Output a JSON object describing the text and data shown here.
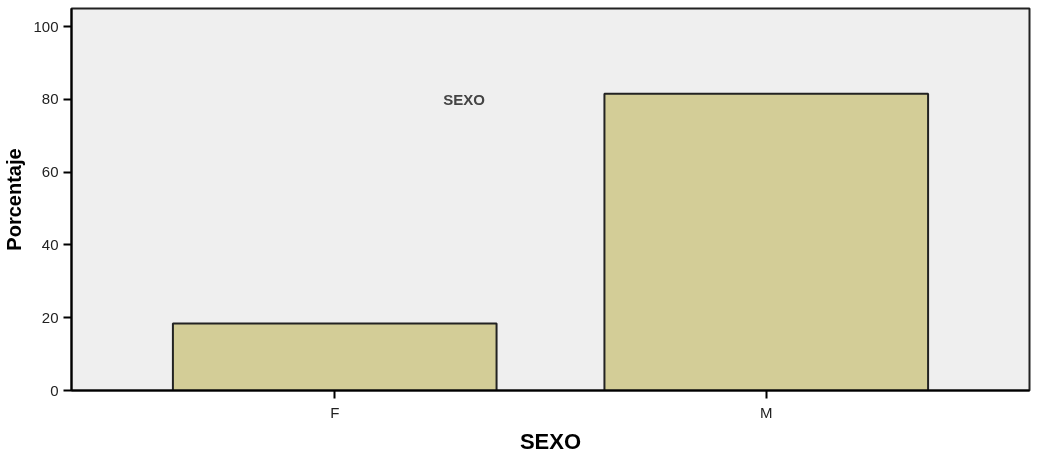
{
  "chart_data": {
    "type": "bar",
    "categories": [
      "F",
      "M"
    ],
    "values": [
      18.4,
      81.6
    ],
    "color": "#d3cd97",
    "xlabel": "SEXO",
    "ylabel": "Porcentaje",
    "annotations": [
      "SEXO"
    ],
    "ylim": [
      0,
      105
    ],
    "yticks": [
      0,
      20,
      40,
      60,
      80,
      100
    ],
    "grid": false
  }
}
